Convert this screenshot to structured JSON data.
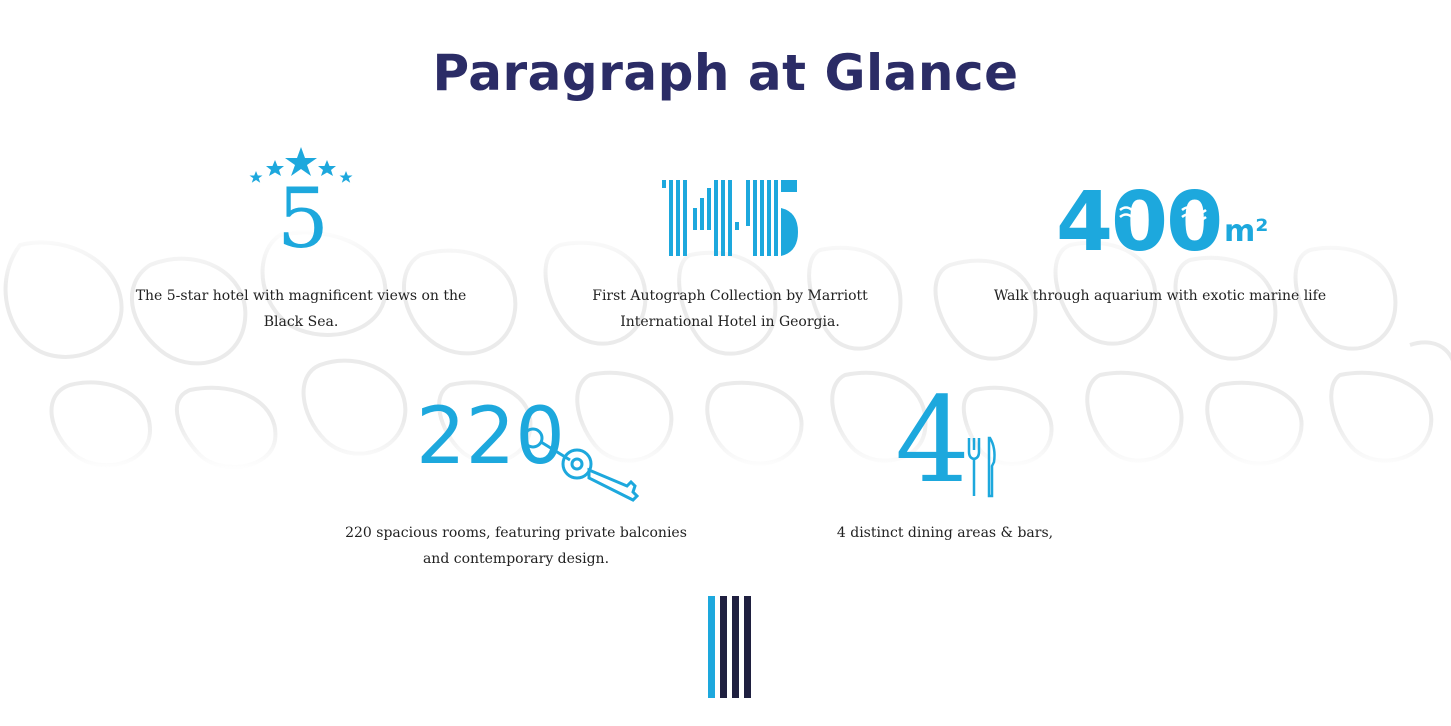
{
  "page": {
    "title": "Paragraph at Glance"
  },
  "colors": {
    "accent": "#1da8dd",
    "title": "#2b2c66",
    "dark_bar": "#1f2040",
    "text": "#222222"
  },
  "stats": [
    {
      "number": "5",
      "icon": "five-stars-icon",
      "caption_lines": [
        "The 5-star hotel with magnificent views on the",
        "Black Sea."
      ]
    },
    {
      "number": "145",
      "icon": "striped-145-icon",
      "caption_lines": [
        "First Autograph Collection by Marriott",
        "International Hotel in Georgia."
      ]
    },
    {
      "number": "400",
      "unit": "m²",
      "icon": "aquarium-400-icon",
      "caption_lines": [
        "Walk through aquarium with exotic marine life"
      ]
    },
    {
      "number": "220",
      "icon": "room-key-icon",
      "caption_lines": [
        "220 spacious rooms, featuring private balconies",
        "and contemporary design."
      ]
    },
    {
      "number": "4",
      "icon": "fork-knife-icon",
      "caption_lines": [
        "4 distinct dining areas & bars,"
      ]
    }
  ],
  "decoration": {
    "bottom_bars_icon": "vertical-bars-icon"
  }
}
